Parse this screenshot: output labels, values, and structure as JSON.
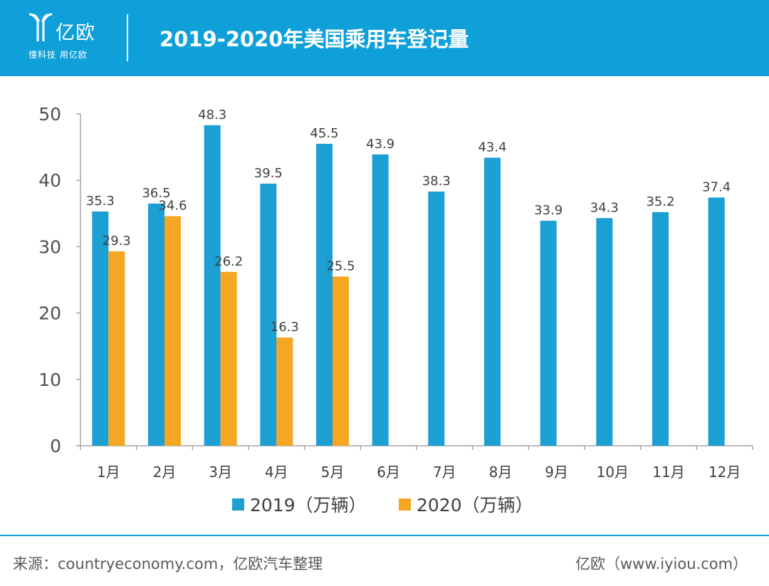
{
  "header": {
    "logo_name": "亿欧",
    "logo_slogan": "懂科技 用亿欧",
    "title": "2019-2020年美国乘用车登记量"
  },
  "chart_data": {
    "type": "bar",
    "title": "2019-2020年美国乘用车登记量",
    "categories": [
      "1月",
      "2月",
      "3月",
      "4月",
      "5月",
      "6月",
      "7月",
      "8月",
      "9月",
      "10月",
      "11月",
      "12月"
    ],
    "series": [
      {
        "name": "2019（万辆）",
        "color": "#1c9fd3",
        "values": [
          35.3,
          36.5,
          48.3,
          39.5,
          45.5,
          43.9,
          38.3,
          43.4,
          33.9,
          34.3,
          35.2,
          37.4
        ]
      },
      {
        "name": "2020（万辆）",
        "color": "#f5a623",
        "values": [
          29.3,
          34.6,
          26.2,
          16.3,
          25.5,
          null,
          null,
          null,
          null,
          null,
          null,
          null
        ]
      }
    ],
    "ylim": [
      0,
      50
    ],
    "yticks": [
      0,
      10,
      20,
      30,
      40,
      50
    ],
    "xlabel": "",
    "ylabel": "",
    "grid": false,
    "data_labels": true,
    "legend_position": "bottom"
  },
  "footer": {
    "source": "来源：countryeconomy.com，亿欧汽车整理",
    "credit": "亿欧（www.iyiou.com）"
  },
  "colors": {
    "header_bg": "#0fa0d9",
    "axis": "#a6a6a6"
  }
}
